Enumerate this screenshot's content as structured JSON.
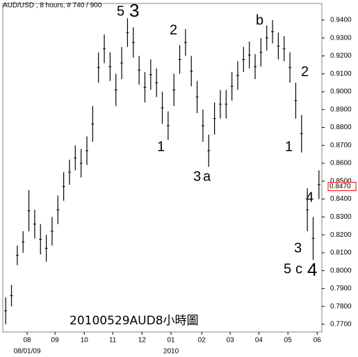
{
  "chart_data": {
    "type": "ohlc",
    "title": "AUD/USD , 8 hours, # 740 / 900",
    "caption": "20100529AUD8小時圖",
    "color": "#000000",
    "x": [
      0.1,
      0.3,
      0.5,
      0.7,
      0.9,
      1.1,
      1.3,
      1.5,
      1.7,
      1.9,
      2.1,
      2.3,
      2.5,
      2.7,
      2.9,
      3.1,
      3.3,
      3.5,
      3.7,
      3.9,
      4.1,
      4.3,
      4.5,
      4.7,
      4.9,
      5.1,
      5.3,
      5.5,
      5.7,
      5.9,
      6.1,
      6.3,
      6.5,
      6.7,
      6.9,
      7.1,
      7.3,
      7.5,
      7.7,
      7.9,
      8.1,
      8.3,
      8.5,
      8.7,
      8.9,
      9.1,
      9.3,
      9.5,
      9.7,
      9.9,
      10.1,
      10.3,
      10.5,
      10.7,
      10.9
    ],
    "high": [
      0.785,
      0.792,
      0.814,
      0.822,
      0.845,
      0.834,
      0.826,
      0.82,
      0.83,
      0.842,
      0.855,
      0.862,
      0.87,
      0.868,
      0.875,
      0.892,
      0.922,
      0.932,
      0.922,
      0.91,
      0.925,
      0.941,
      0.936,
      0.92,
      0.911,
      0.918,
      0.913,
      0.9,
      0.889,
      0.91,
      0.926,
      0.935,
      0.92,
      0.906,
      0.89,
      0.876,
      0.894,
      0.901,
      0.901,
      0.911,
      0.917,
      0.925,
      0.928,
      0.921,
      0.93,
      0.937,
      0.94,
      0.933,
      0.931,
      0.922,
      0.905,
      0.887,
      0.846,
      0.83,
      0.856
    ],
    "low": [
      0.77,
      0.78,
      0.803,
      0.81,
      0.822,
      0.818,
      0.809,
      0.805,
      0.814,
      0.826,
      0.839,
      0.848,
      0.856,
      0.852,
      0.859,
      0.872,
      0.905,
      0.916,
      0.906,
      0.892,
      0.907,
      0.925,
      0.919,
      0.904,
      0.894,
      0.901,
      0.897,
      0.882,
      0.873,
      0.892,
      0.91,
      0.92,
      0.903,
      0.888,
      0.872,
      0.858,
      0.876,
      0.885,
      0.885,
      0.895,
      0.901,
      0.911,
      0.913,
      0.907,
      0.914,
      0.923,
      0.927,
      0.918,
      0.917,
      0.905,
      0.885,
      0.866,
      0.822,
      0.806,
      0.84
    ],
    "xlim": [
      0,
      11
    ],
    "xticks": [
      {
        "value": 0.84,
        "label": "08"
      },
      {
        "value": 1.8,
        "label": "09"
      },
      {
        "value": 2.81,
        "label": "10"
      },
      {
        "value": 3.79,
        "label": "11"
      },
      {
        "value": 4.8,
        "label": "12"
      },
      {
        "value": 5.8,
        "label": "01"
      },
      {
        "value": 6.86,
        "label": "02"
      },
      {
        "value": 7.84,
        "label": "03"
      },
      {
        "value": 8.83,
        "label": "04"
      },
      {
        "value": 9.83,
        "label": "05"
      },
      {
        "value": 10.84,
        "label": "06"
      }
    ],
    "xsublabels": [
      {
        "value": 0.84,
        "label": "08/01/09"
      },
      {
        "value": 5.8,
        "label": "2010"
      }
    ],
    "ylim": [
      0.7657,
      0.9493
    ],
    "yticks": [
      {
        "value": 0.77,
        "label": "0.7700"
      },
      {
        "value": 0.78,
        "label": "0.7800"
      },
      {
        "value": 0.79,
        "label": "0.7900"
      },
      {
        "value": 0.8,
        "label": "0.8000"
      },
      {
        "value": 0.81,
        "label": "0.8100"
      },
      {
        "value": 0.82,
        "label": "0.8200"
      },
      {
        "value": 0.83,
        "label": "0.8300"
      },
      {
        "value": 0.84,
        "label": "0.8400"
      },
      {
        "value": 0.85,
        "label": "0.8500"
      },
      {
        "value": 0.86,
        "label": "0.8600"
      },
      {
        "value": 0.87,
        "label": "0.8700"
      },
      {
        "value": 0.88,
        "label": "0.8800"
      },
      {
        "value": 0.89,
        "label": "0.8900"
      },
      {
        "value": 0.9,
        "label": "0.9000"
      },
      {
        "value": 0.91,
        "label": "0.9100"
      },
      {
        "value": 0.92,
        "label": "0.9200"
      },
      {
        "value": 0.93,
        "label": "0.9300"
      },
      {
        "value": 0.94,
        "label": "0.9400"
      }
    ],
    "last_price": {
      "value": 0.847,
      "label": "0.8470",
      "color": "#ff0000"
    },
    "annotations": [
      {
        "text": "5",
        "color": "#0000ff"
      },
      {
        "text": "3",
        "color": "#990000"
      },
      {
        "text": "2",
        "color": "#ff0000"
      },
      {
        "text": "1",
        "color": "#ff0000"
      },
      {
        "text": "3",
        "color": "#ff0000"
      },
      {
        "text": "a",
        "color": "#0000ff"
      },
      {
        "text": "b",
        "color": "#0000ff"
      },
      {
        "text": "2",
        "color": "#009900"
      },
      {
        "text": "1",
        "color": "#009900"
      },
      {
        "text": "4",
        "color": "#009900"
      },
      {
        "text": "3",
        "color": "#009900"
      },
      {
        "text": "5",
        "color": "#009900"
      },
      {
        "text": "c",
        "color": "#0000ff"
      },
      {
        "text": "4",
        "color": "#990000"
      }
    ]
  }
}
